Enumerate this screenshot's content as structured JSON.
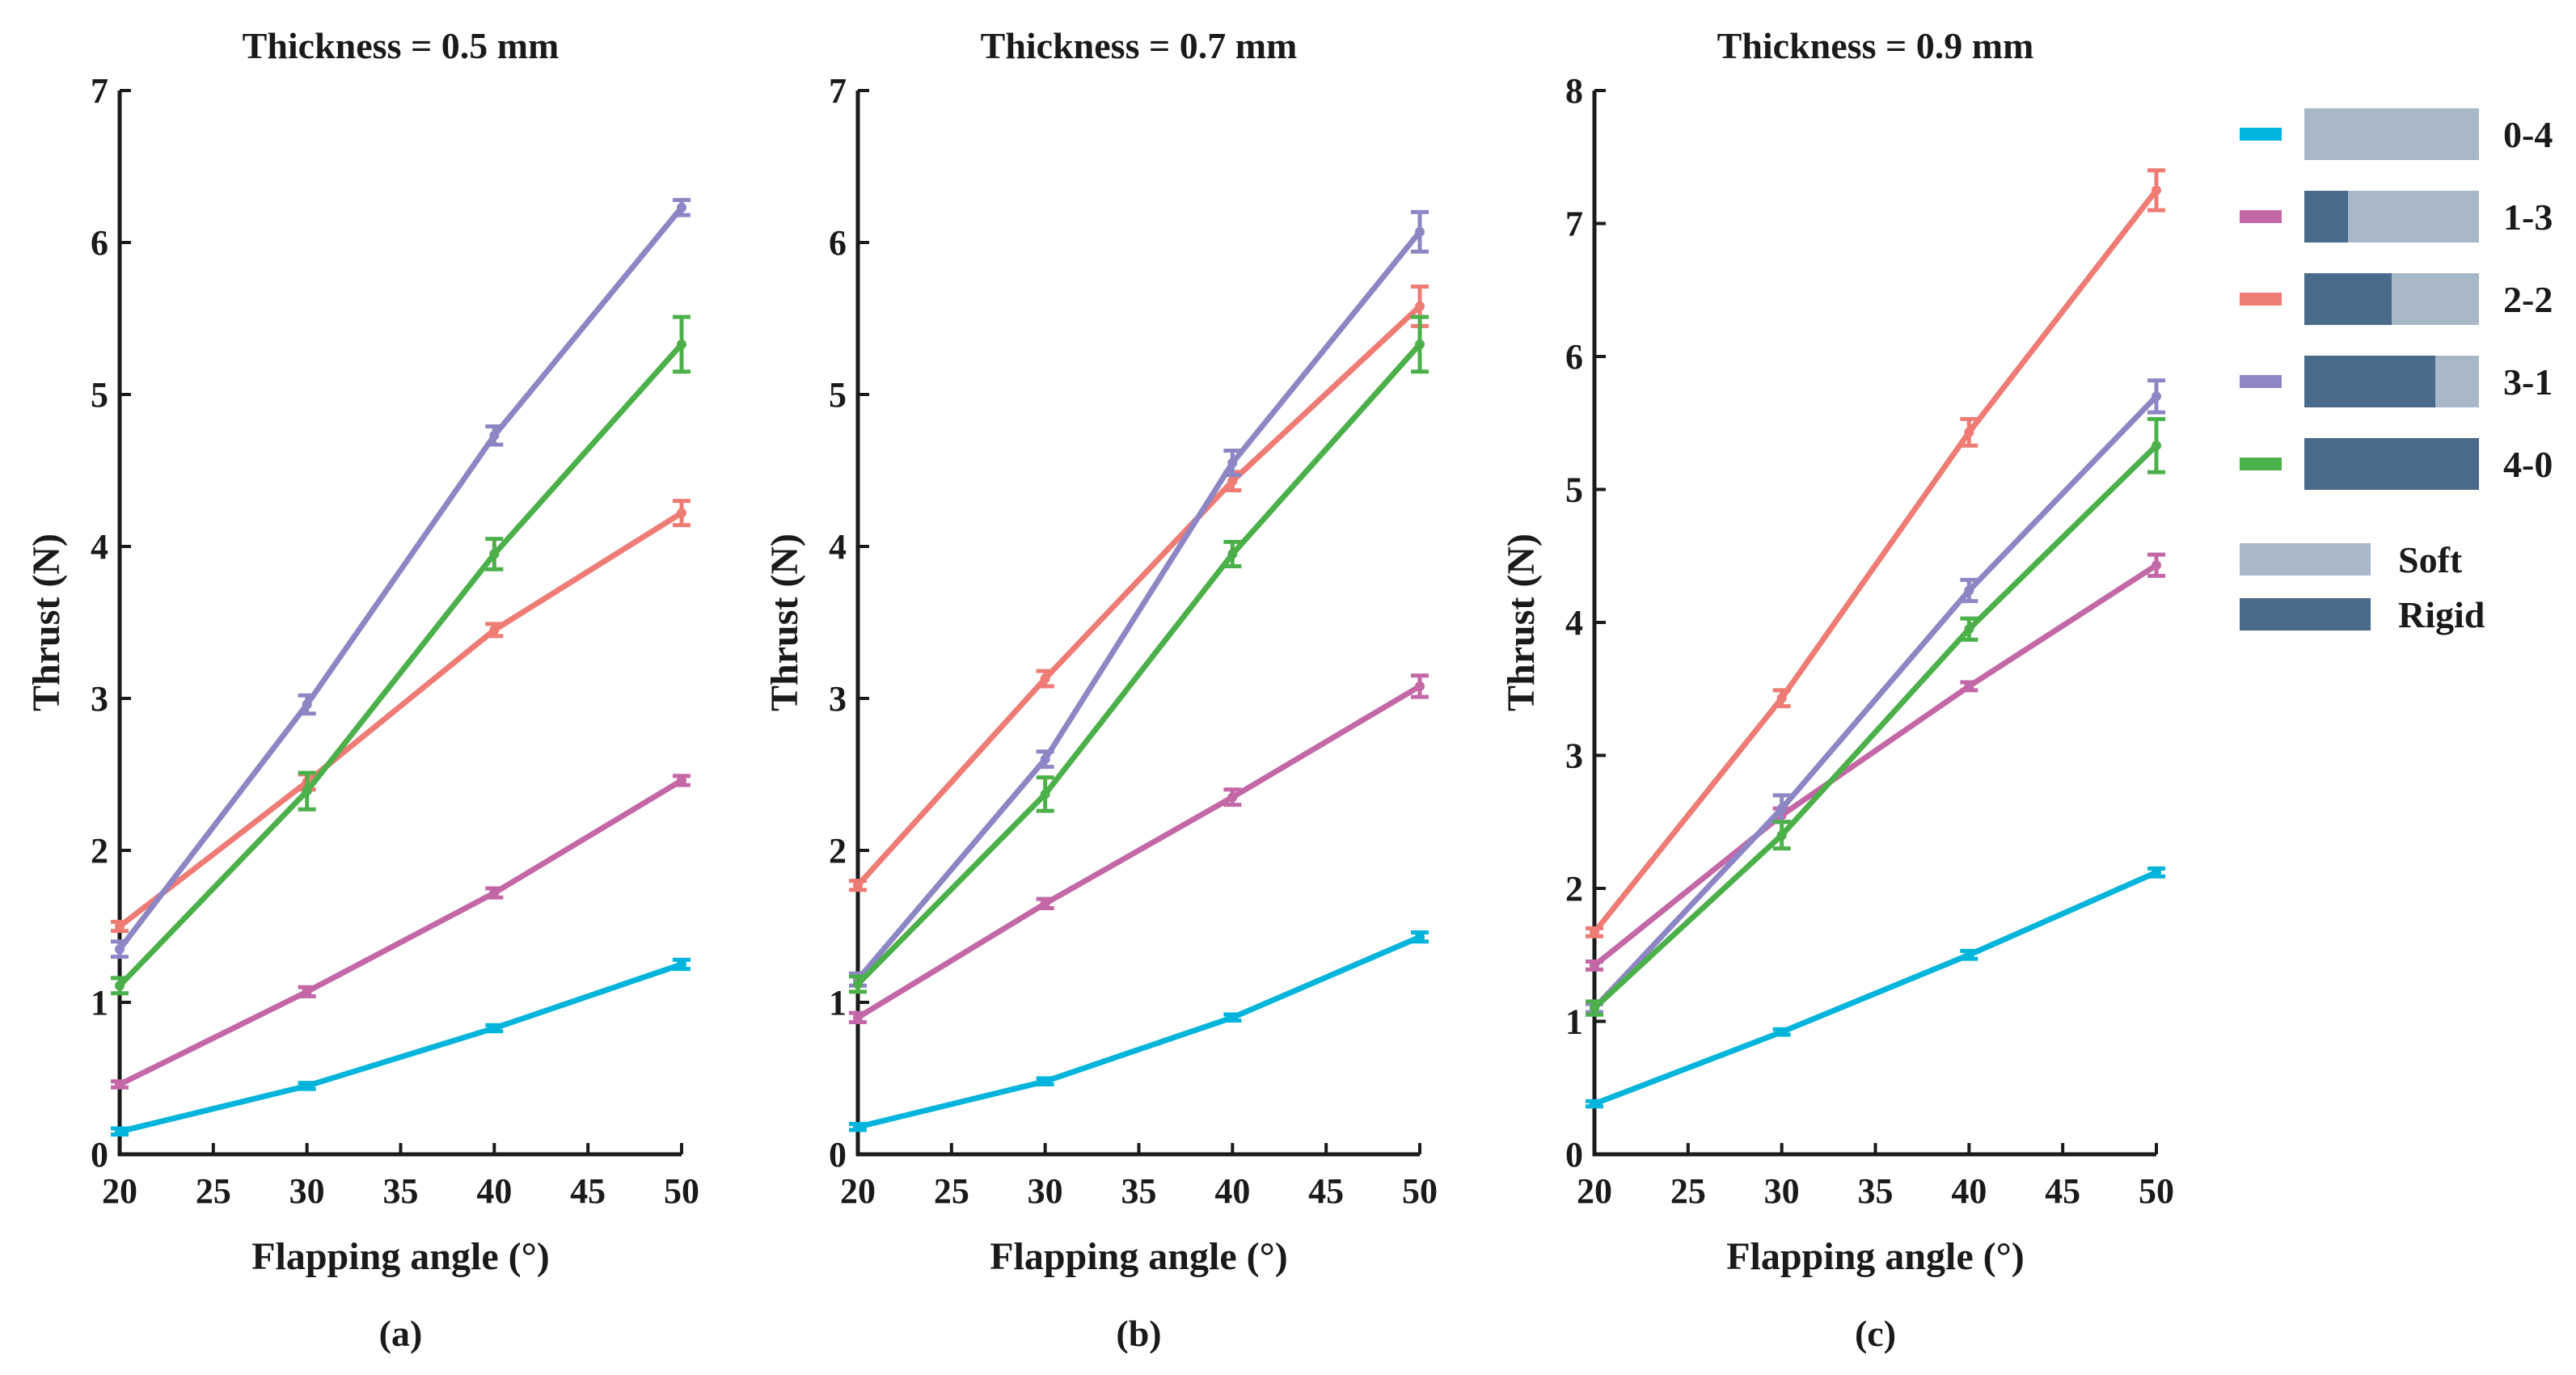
{
  "colors": {
    "0-4": "#00B4DC",
    "1-3": "#C367A6",
    "2-2": "#EE7B74",
    "3-1": "#8C87C4",
    "4-0": "#4CB04A",
    "soft": "#A9B8C8",
    "rigid": "#4A6A8B",
    "axis": "#1a1a1a"
  },
  "legend": {
    "series": [
      {
        "key": "0-4",
        "label": "0-4",
        "rigid_fraction": 0.0
      },
      {
        "key": "1-3",
        "label": "1-3",
        "rigid_fraction": 0.25
      },
      {
        "key": "2-2",
        "label": "2-2",
        "rigid_fraction": 0.5
      },
      {
        "key": "3-1",
        "label": "3-1",
        "rigid_fraction": 0.75
      },
      {
        "key": "4-0",
        "label": "4-0",
        "rigid_fraction": 1.0
      }
    ],
    "materials": [
      {
        "key": "soft",
        "label": "Soft"
      },
      {
        "key": "rigid",
        "label": "Rigid"
      }
    ]
  },
  "chart_data": [
    {
      "type": "line",
      "panel": "(a)",
      "title": "Thickness = 0.5 mm",
      "xlabel": "Flapping angle (°)",
      "ylabel": "Thrust (N)",
      "xlim": [
        20,
        50
      ],
      "ylim": [
        0,
        7
      ],
      "xticks": [
        20,
        25,
        30,
        35,
        40,
        45,
        50
      ],
      "yticks": [
        0,
        1,
        2,
        3,
        4,
        5,
        6,
        7
      ],
      "x": [
        20,
        30,
        40,
        50
      ],
      "series": [
        {
          "name": "0-4",
          "values": [
            0.15,
            0.45,
            0.83,
            1.25
          ],
          "errors": [
            0.02,
            0.02,
            0.02,
            0.03
          ]
        },
        {
          "name": "1-3",
          "values": [
            0.46,
            1.07,
            1.72,
            2.46
          ],
          "errors": [
            0.02,
            0.03,
            0.03,
            0.03
          ]
        },
        {
          "name": "2-2",
          "values": [
            1.5,
            2.45,
            3.45,
            4.22
          ],
          "errors": [
            0.03,
            0.05,
            0.04,
            0.08
          ]
        },
        {
          "name": "3-1",
          "values": [
            1.35,
            2.96,
            4.73,
            6.23
          ],
          "errors": [
            0.05,
            0.06,
            0.06,
            0.05
          ]
        },
        {
          "name": "4-0",
          "values": [
            1.11,
            2.39,
            3.95,
            5.33
          ],
          "errors": [
            0.05,
            0.12,
            0.1,
            0.18
          ]
        }
      ]
    },
    {
      "type": "line",
      "panel": "(b)",
      "title": "Thickness = 0.7 mm",
      "xlabel": "Flapping angle (°)",
      "ylabel": "Thrust (N)",
      "xlim": [
        20,
        50
      ],
      "ylim": [
        0,
        7
      ],
      "xticks": [
        20,
        25,
        30,
        35,
        40,
        45,
        50
      ],
      "yticks": [
        0,
        1,
        2,
        3,
        4,
        5,
        6,
        7
      ],
      "x": [
        20,
        30,
        40,
        50
      ],
      "series": [
        {
          "name": "0-4",
          "values": [
            0.18,
            0.48,
            0.9,
            1.43
          ],
          "errors": [
            0.02,
            0.02,
            0.02,
            0.03
          ]
        },
        {
          "name": "1-3",
          "values": [
            0.9,
            1.65,
            2.35,
            3.08
          ],
          "errors": [
            0.03,
            0.03,
            0.05,
            0.07
          ]
        },
        {
          "name": "2-2",
          "values": [
            1.77,
            3.13,
            4.43,
            5.58
          ],
          "errors": [
            0.03,
            0.05,
            0.06,
            0.13
          ]
        },
        {
          "name": "3-1",
          "values": [
            1.15,
            2.6,
            4.55,
            6.07
          ],
          "errors": [
            0.04,
            0.05,
            0.08,
            0.13
          ]
        },
        {
          "name": "4-0",
          "values": [
            1.12,
            2.37,
            3.95,
            5.33
          ],
          "errors": [
            0.05,
            0.11,
            0.08,
            0.18
          ]
        }
      ]
    },
    {
      "type": "line",
      "panel": "(c)",
      "title": "Thickness = 0.9 mm",
      "xlabel": "Flapping angle (°)",
      "ylabel": "Thrust (N)",
      "xlim": [
        20,
        50
      ],
      "ylim": [
        0,
        8
      ],
      "xticks": [
        20,
        25,
        30,
        35,
        40,
        45,
        50
      ],
      "yticks": [
        0,
        1,
        2,
        3,
        4,
        5,
        6,
        7,
        8
      ],
      "x": [
        20,
        30,
        40,
        50
      ],
      "series": [
        {
          "name": "0-4",
          "values": [
            0.38,
            0.92,
            1.5,
            2.12
          ],
          "errors": [
            0.02,
            0.02,
            0.03,
            0.03
          ]
        },
        {
          "name": "1-3",
          "values": [
            1.42,
            2.55,
            3.52,
            4.43
          ],
          "errors": [
            0.03,
            0.05,
            0.03,
            0.08
          ]
        },
        {
          "name": "2-2",
          "values": [
            1.67,
            3.43,
            5.43,
            7.25
          ],
          "errors": [
            0.03,
            0.06,
            0.1,
            0.15
          ]
        },
        {
          "name": "3-1",
          "values": [
            1.1,
            2.6,
            4.24,
            5.7
          ],
          "errors": [
            0.03,
            0.1,
            0.08,
            0.12
          ]
        },
        {
          "name": "4-0",
          "values": [
            1.1,
            2.4,
            3.95,
            5.33
          ],
          "errors": [
            0.05,
            0.1,
            0.08,
            0.2
          ]
        }
      ]
    }
  ]
}
